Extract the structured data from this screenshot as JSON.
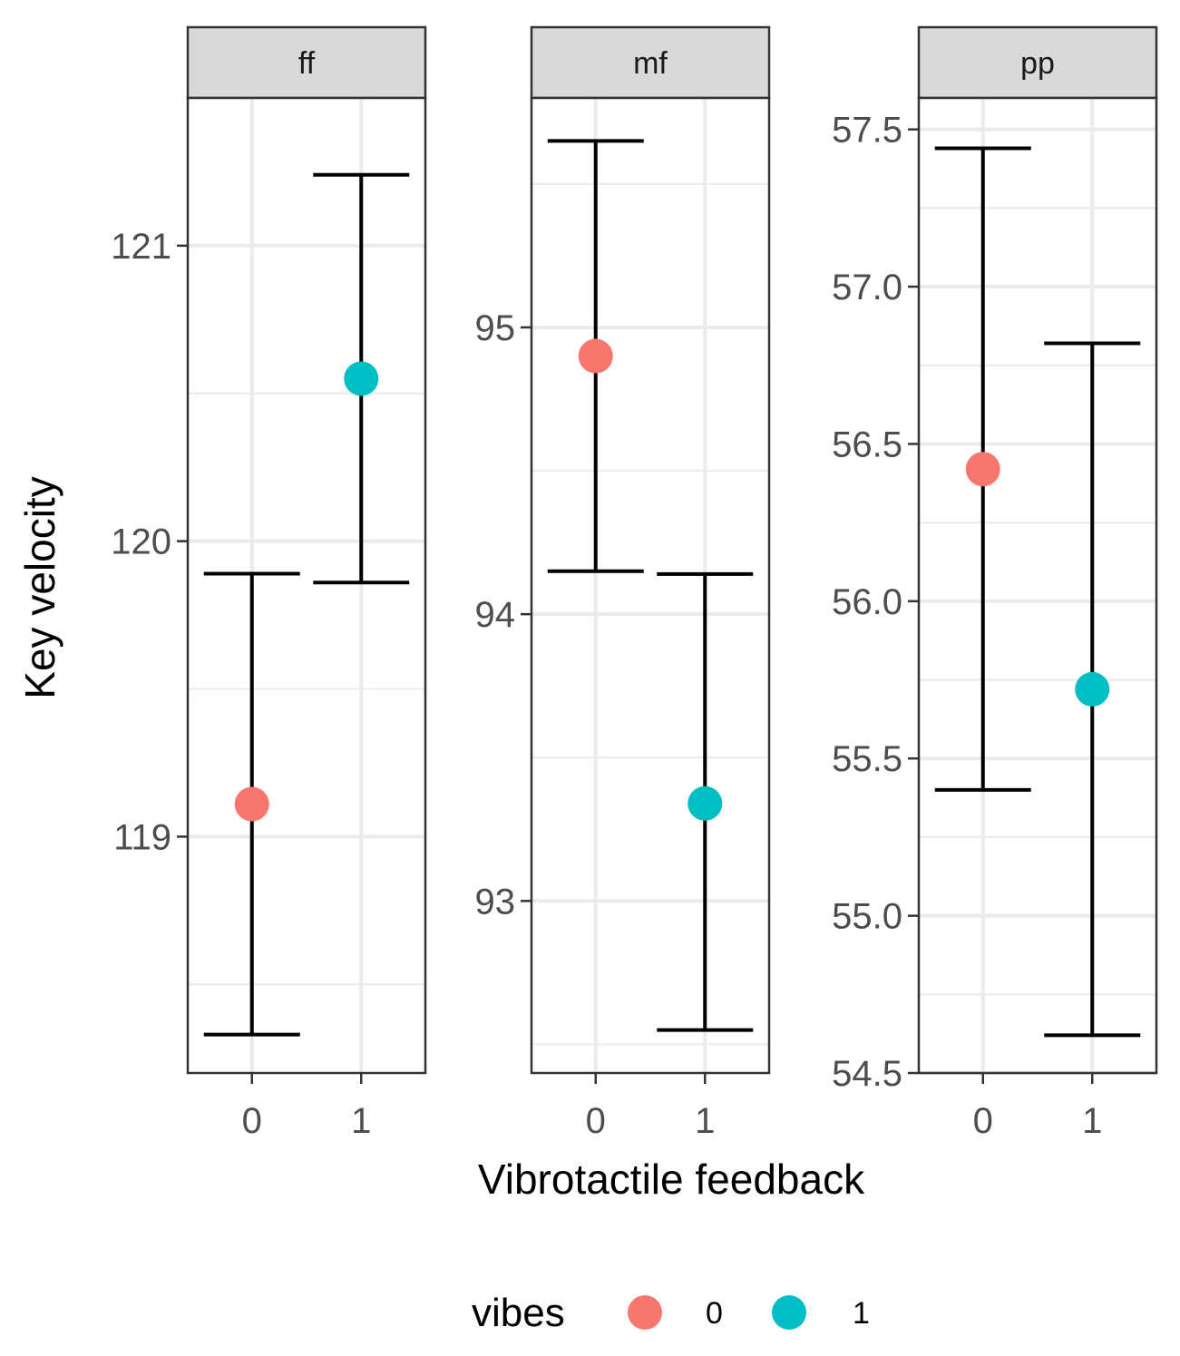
{
  "chart_data": {
    "type": "scatter",
    "subtype": "point-errorbar-faceted",
    "xlabel": "Vibrotactile feedback",
    "ylabel": "Key velocity",
    "x_categories": [
      "0",
      "1"
    ],
    "legend": {
      "title": "vibes",
      "position": "bottom",
      "entries": [
        {
          "label": "0",
          "color": "#F8766D"
        },
        {
          "label": "1",
          "color": "#00BFC4"
        }
      ]
    },
    "facets": [
      {
        "label": "ff",
        "ylim": [
          118.2,
          121.5
        ],
        "yticks": [
          {
            "value": 119,
            "label": "119"
          },
          {
            "value": 120,
            "label": "120"
          },
          {
            "value": 121,
            "label": "121"
          }
        ],
        "minor_gridlines": [
          118.5,
          119.5,
          120.5
        ],
        "points": [
          {
            "x": "0",
            "y": 119.11,
            "ymin": 118.33,
            "ymax": 119.89
          },
          {
            "x": "1",
            "y": 120.55,
            "ymin": 119.86,
            "ymax": 121.24
          }
        ]
      },
      {
        "label": "mf",
        "ylim": [
          92.4,
          95.8
        ],
        "yticks": [
          {
            "value": 93,
            "label": "93"
          },
          {
            "value": 94,
            "label": "94"
          },
          {
            "value": 95,
            "label": "95"
          }
        ],
        "minor_gridlines": [
          92.5,
          93.5,
          94.5,
          95.5
        ],
        "points": [
          {
            "x": "0",
            "y": 94.9,
            "ymin": 94.15,
            "ymax": 95.65
          },
          {
            "x": "1",
            "y": 93.34,
            "ymin": 92.55,
            "ymax": 94.14
          }
        ]
      },
      {
        "label": "pp",
        "ylim": [
          54.5,
          57.6
        ],
        "yticks": [
          {
            "value": 54.5,
            "label": "54.5"
          },
          {
            "value": 55.0,
            "label": "55.0"
          },
          {
            "value": 55.5,
            "label": "55.5"
          },
          {
            "value": 56.0,
            "label": "56.0"
          },
          {
            "value": 56.5,
            "label": "56.5"
          },
          {
            "value": 57.0,
            "label": "57.0"
          },
          {
            "value": 57.5,
            "label": "57.5"
          }
        ],
        "minor_gridlines": [
          54.75,
          55.25,
          55.75,
          56.25,
          56.75,
          57.25
        ],
        "points": [
          {
            "x": "0",
            "y": 56.42,
            "ymin": 55.4,
            "ymax": 57.44
          },
          {
            "x": "1",
            "y": 55.72,
            "ymin": 54.62,
            "ymax": 56.82
          }
        ]
      }
    ]
  }
}
